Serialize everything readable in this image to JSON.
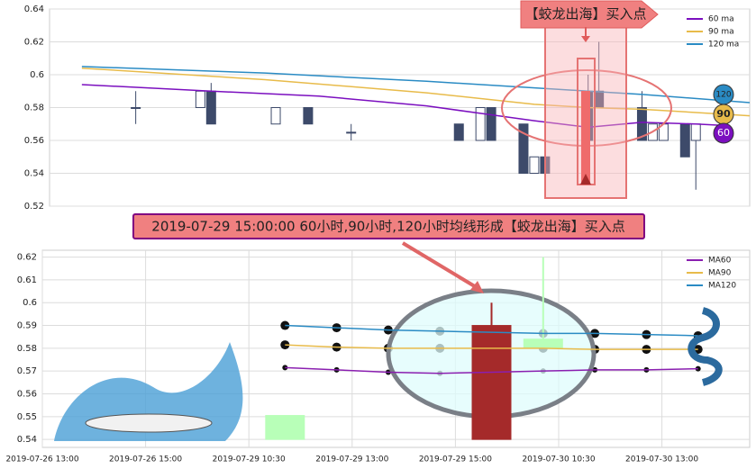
{
  "chart_data": [
    {
      "type": "candlestick",
      "annotation": "【蛟龙出海】买入点",
      "end_labels": [
        "120",
        "90",
        "60"
      ],
      "ylim": [
        0.52,
        0.64
      ],
      "yticks": [
        0.52,
        0.54,
        0.56,
        0.58,
        0.6,
        0.62,
        0.64
      ],
      "xlim": [
        0,
        65
      ],
      "grid": true,
      "legend": "upper right",
      "candles": {
        "color": "#3d4a6a",
        "x": [
          8,
          14,
          15,
          21,
          24,
          28,
          38,
          40,
          41,
          44,
          45,
          46,
          50,
          51,
          55,
          56,
          57,
          59,
          60
        ],
        "open": [
          0.58,
          0.58,
          0.59,
          0.57,
          0.58,
          0.565,
          0.57,
          0.56,
          0.58,
          0.57,
          0.54,
          0.55,
          0.59,
          0.59,
          0.58,
          0.56,
          0.56,
          0.57,
          0.56
        ],
        "high": [
          0.59,
          0.59,
          0.595,
          0.58,
          0.58,
          0.57,
          0.57,
          0.58,
          0.58,
          0.57,
          0.55,
          0.55,
          0.6,
          0.62,
          0.59,
          0.57,
          0.57,
          0.57,
          0.57
        ],
        "low": [
          0.57,
          0.58,
          0.57,
          0.57,
          0.57,
          0.56,
          0.56,
          0.56,
          0.56,
          0.54,
          0.54,
          0.54,
          0.56,
          0.58,
          0.56,
          0.56,
          0.56,
          0.55,
          0.53
        ],
        "close": [
          0.58,
          0.59,
          0.57,
          0.58,
          0.57,
          0.565,
          0.56,
          0.58,
          0.56,
          0.54,
          0.55,
          0.54,
          0.56,
          0.58,
          0.56,
          0.57,
          0.57,
          0.55,
          0.57
        ],
        "hollow": [
          false,
          true,
          false,
          true,
          false,
          false,
          false,
          true,
          false,
          false,
          true,
          false,
          false,
          false,
          false,
          true,
          true,
          false,
          true
        ]
      },
      "series": [
        {
          "name": "60 ma",
          "color": "#7b0fbf",
          "x": [
            3,
            15,
            25,
            35,
            45,
            50,
            55,
            60,
            63
          ],
          "values": [
            0.594,
            0.59,
            0.587,
            0.581,
            0.572,
            0.568,
            0.571,
            0.57,
            0.569
          ]
        },
        {
          "name": "90 ma",
          "color": "#e8bb4a",
          "x": [
            3,
            20,
            35,
            45,
            50,
            55,
            65
          ],
          "values": [
            0.604,
            0.597,
            0.589,
            0.582,
            0.58,
            0.579,
            0.575
          ]
        },
        {
          "name": "120 ma",
          "color": "#2a8bc4",
          "x": [
            3,
            20,
            35,
            50,
            55,
            65
          ],
          "values": [
            0.605,
            0.601,
            0.596,
            0.59,
            0.588,
            0.583
          ]
        }
      ]
    },
    {
      "type": "candlestick",
      "annotation": "2019-07-29 15:00:00 60小时,90小时,120小时均线形成【蛟龙出海】买入点",
      "ylim": [
        0.5365,
        0.623
      ],
      "yticks": [
        0.54,
        0.55,
        0.56,
        0.57,
        0.58,
        0.59,
        0.6,
        0.61,
        0.62
      ],
      "xlim": [
        0,
        13.7
      ],
      "xticks": [
        {
          "value": 0,
          "label": "2019-07-26 13:00"
        },
        {
          "value": 2,
          "label": "2019-07-26 15:00"
        },
        {
          "value": 4,
          "label": "2019-07-29 10:30"
        },
        {
          "value": 6,
          "label": "2019-07-29 13:00"
        },
        {
          "value": 8,
          "label": "2019-07-29 15:00"
        },
        {
          "value": 10,
          "label": "2019-07-30 10:30"
        },
        {
          "value": 12,
          "label": "2019-07-30 13:00"
        }
      ],
      "grid": true,
      "legend": "upper right",
      "candles": {
        "x": [
          4.7,
          8.7,
          9.7
        ],
        "open": [
          0.5505,
          0.54,
          0.584
        ],
        "high": [
          0.5505,
          0.6,
          0.62
        ],
        "low": [
          0.54,
          0.54,
          0.58
        ],
        "close": [
          0.54,
          0.59,
          0.58
        ],
        "colors": [
          "#b8ffb8",
          "#a52a2a",
          "#b8ffb8"
        ]
      },
      "series": [
        {
          "name": "MA60",
          "color": "#8a1fb0",
          "x": [
            4.7,
            5.7,
            6.7,
            7.7,
            8.7,
            9.7,
            10.7,
            11.7,
            12.7
          ],
          "values": [
            0.5715,
            0.5705,
            0.5695,
            0.569,
            0.5695,
            0.57,
            0.5705,
            0.5705,
            0.571
          ]
        },
        {
          "name": "MA90",
          "color": "#e8bb4a",
          "x": [
            4.7,
            5.7,
            6.7,
            7.7,
            8.7,
            9.7,
            10.7,
            11.7,
            12.7
          ],
          "values": [
            0.5815,
            0.5805,
            0.58,
            0.58,
            0.58,
            0.58,
            0.5795,
            0.5795,
            0.5795
          ]
        },
        {
          "name": "MA120",
          "color": "#2a8bc4",
          "x": [
            4.7,
            5.7,
            6.7,
            7.7,
            8.7,
            9.7,
            10.7,
            11.7,
            12.7
          ],
          "values": [
            0.59,
            0.589,
            0.588,
            0.5875,
            0.587,
            0.5865,
            0.5865,
            0.586,
            0.5855
          ]
        }
      ]
    }
  ]
}
